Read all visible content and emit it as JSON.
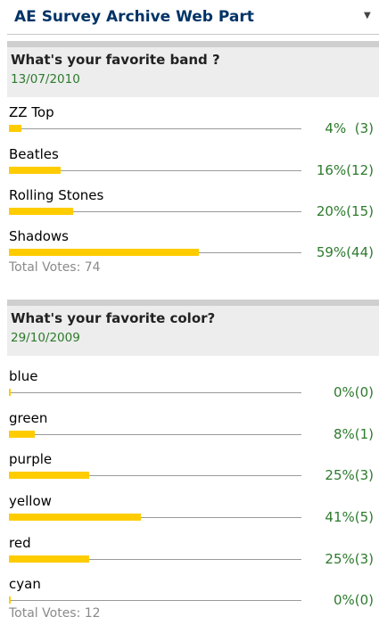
{
  "webpart": {
    "title": "AE Survey Archive Web Part",
    "menu_icon": "chevron-down-icon",
    "menu_glyph": "▼"
  },
  "surveys": [
    {
      "question": "What's your favorite band ?",
      "date": "13/07/2010",
      "answers": [
        {
          "label": "ZZ Top",
          "fraction": 0.04,
          "result": "4%  (3)"
        },
        {
          "label": "Beatles",
          "fraction": 0.16,
          "result": "16%(12)"
        },
        {
          "label": "Rolling Stones",
          "fraction": 0.2,
          "result": "20%(15)"
        },
        {
          "label": "Shadows",
          "fraction": 0.59,
          "result": "59%(44)"
        }
      ],
      "total": "Total Votes: 74"
    },
    {
      "question": "What's your favorite color?",
      "date": "29/10/2009",
      "answers": [
        {
          "label": "blue",
          "fraction": 0.0,
          "result": "0%(0)"
        },
        {
          "label": "green",
          "fraction": 0.08,
          "result": "8%(1)"
        },
        {
          "label": "purple",
          "fraction": 0.25,
          "result": "25%(3)"
        },
        {
          "label": "yellow",
          "fraction": 0.41,
          "result": "41%(5)"
        },
        {
          "label": "red",
          "fraction": 0.25,
          "result": "25%(3)"
        },
        {
          "label": "cyan",
          "fraction": 0.0,
          "result": "0%(0)"
        }
      ],
      "total": "Total Votes: 12"
    }
  ],
  "colors": {
    "bar": "#ffcc00",
    "date_and_result": "#2d7a2d",
    "title": "#003366"
  }
}
